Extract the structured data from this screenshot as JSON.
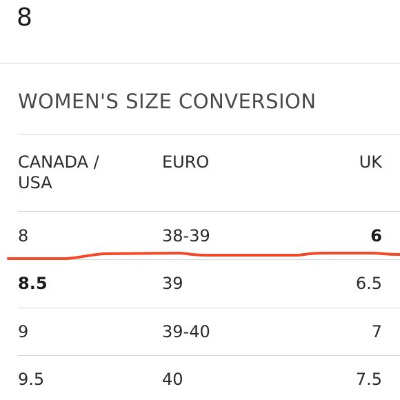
{
  "selected_size": "8",
  "section_title": "WOMEN'S SIZE CONVERSION",
  "table": {
    "headers": [
      "CANADA / USA",
      "EURO",
      "UK"
    ],
    "rows": [
      [
        "8",
        "38-39",
        "6"
      ],
      [
        "8.5",
        "39",
        "6.5"
      ],
      [
        "9",
        "39-40",
        "7"
      ],
      [
        "9.5",
        "40",
        "7.5"
      ]
    ]
  },
  "colors": {
    "annotation_stroke": "#f04a2a",
    "divider": "#d4d4d4"
  }
}
